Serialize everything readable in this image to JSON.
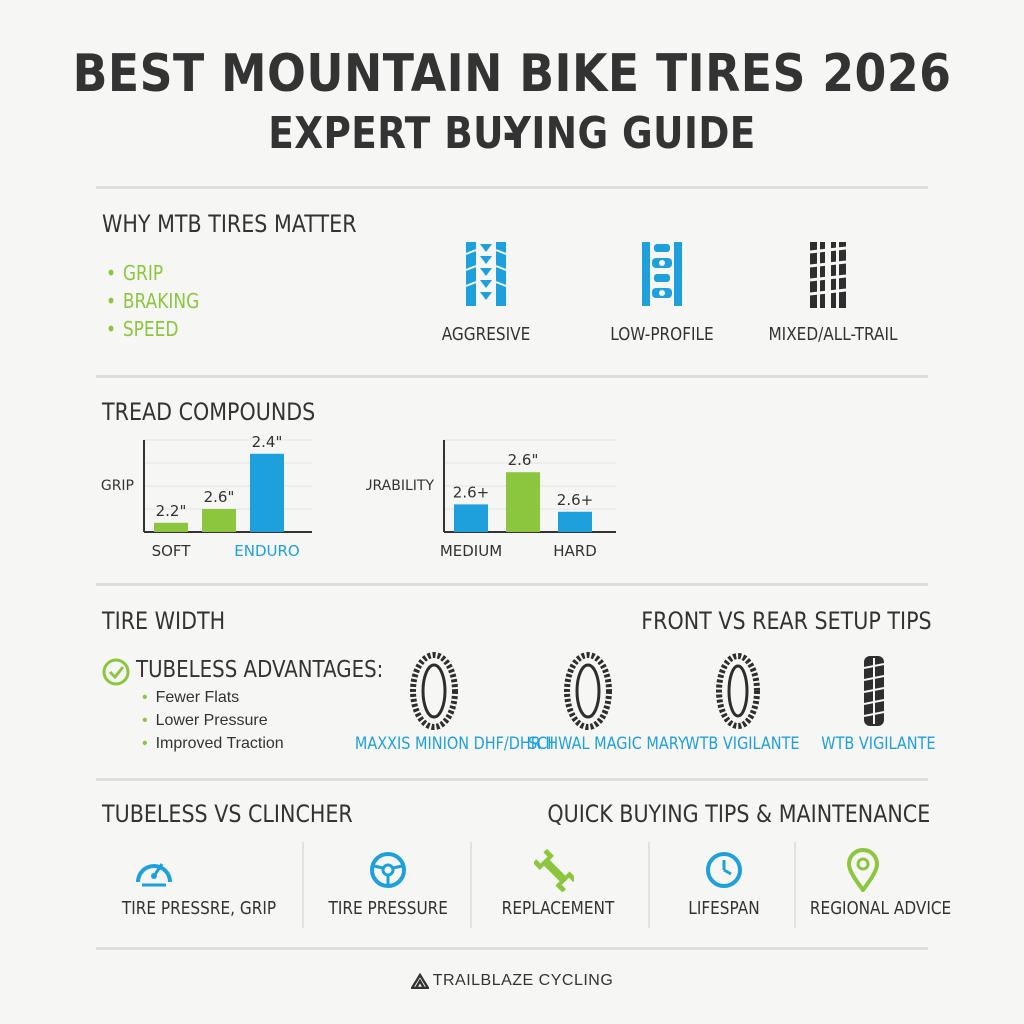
{
  "title": {
    "line1": "BEST MOUNTAIN BIKE TIRES 2026 -",
    "line2": "EXPERT BUYING GUIDE"
  },
  "why": {
    "heading": "WHY MTB TIRES MATTER",
    "bullets": [
      "GRIP",
      "BRAKING",
      "SPEED"
    ],
    "treads": [
      {
        "label": "AGGRESIVE",
        "icon": "tread-aggressive-icon"
      },
      {
        "label": "LOW-PROFILE",
        "icon": "tread-low-profile-icon"
      },
      {
        "label": "MIXED/ALL-TRAIL",
        "icon": "tread-mixed-icon"
      }
    ]
  },
  "compounds": {
    "heading": "TREAD COMPOUNDS"
  },
  "chart_data": [
    {
      "type": "bar",
      "ylabel": "GRIP",
      "categories": [
        "SOFT",
        "",
        "ENDURO"
      ],
      "values": [
        1,
        2.5,
        8.5
      ],
      "data_labels": [
        "2.2\"",
        "2.6\"",
        "2.4\""
      ],
      "colors": [
        "#8cc63f",
        "#8cc63f",
        "#1ea0dc"
      ],
      "category_colors": [
        "#333333",
        "#333333",
        "#1ea0dc"
      ]
    },
    {
      "type": "bar",
      "ylabel": "DURABILITY",
      "categories": [
        "MEDIUM",
        "",
        "HARD"
      ],
      "values": [
        3,
        6.5,
        2.2
      ],
      "data_labels": [
        "2.6+",
        "2.6\"",
        "2.6+"
      ],
      "colors": [
        "#1ea0dc",
        "#8cc63f",
        "#1ea0dc"
      ],
      "category_colors": [
        "#333333",
        "#333333",
        "#333333"
      ]
    }
  ],
  "width": {
    "heading": "TIRE WIDTH",
    "right_heading": "FRONT VS REAR SETUP TIPS",
    "tubeless_heading": "TUBELESS ADVANTAGES:",
    "advantages": [
      "Fewer Flats",
      "Lower Pressure",
      "Improved Traction"
    ],
    "tires": [
      {
        "label": "MAXXIS MINION DHF/DHR II",
        "icon": "tire-side-icon"
      },
      {
        "label": "SCHWAL MAGIC MARY",
        "icon": "tire-side-icon"
      },
      {
        "label": "WTB VIGILANTE",
        "icon": "tire-side-icon"
      },
      {
        "label": "WTB VIGILANTE",
        "icon": "tire-tread-icon"
      }
    ]
  },
  "tips": {
    "left_heading": "TUBELESS VS CLINCHER",
    "right_heading": "QUICK BUYING TIPS & MAINTENANCE",
    "items": [
      {
        "label": "TIRE PRESSRE, GRIP",
        "icon": "gauge-icon"
      },
      {
        "label": "TIRE PRESSURE",
        "icon": "steering-wheel-icon"
      },
      {
        "label": "REPLACEMENT",
        "icon": "wrench-icon"
      },
      {
        "label": "LIFESPAN",
        "icon": "clock-icon"
      },
      {
        "label": "REGIONAL ADVICE",
        "icon": "location-pin-icon"
      }
    ]
  },
  "footer": {
    "brand": "TRAILBLAZE CYCLING"
  },
  "colors": {
    "accent_blue": "#1ea0dc",
    "accent_green": "#8cc63f",
    "text": "#333333"
  }
}
